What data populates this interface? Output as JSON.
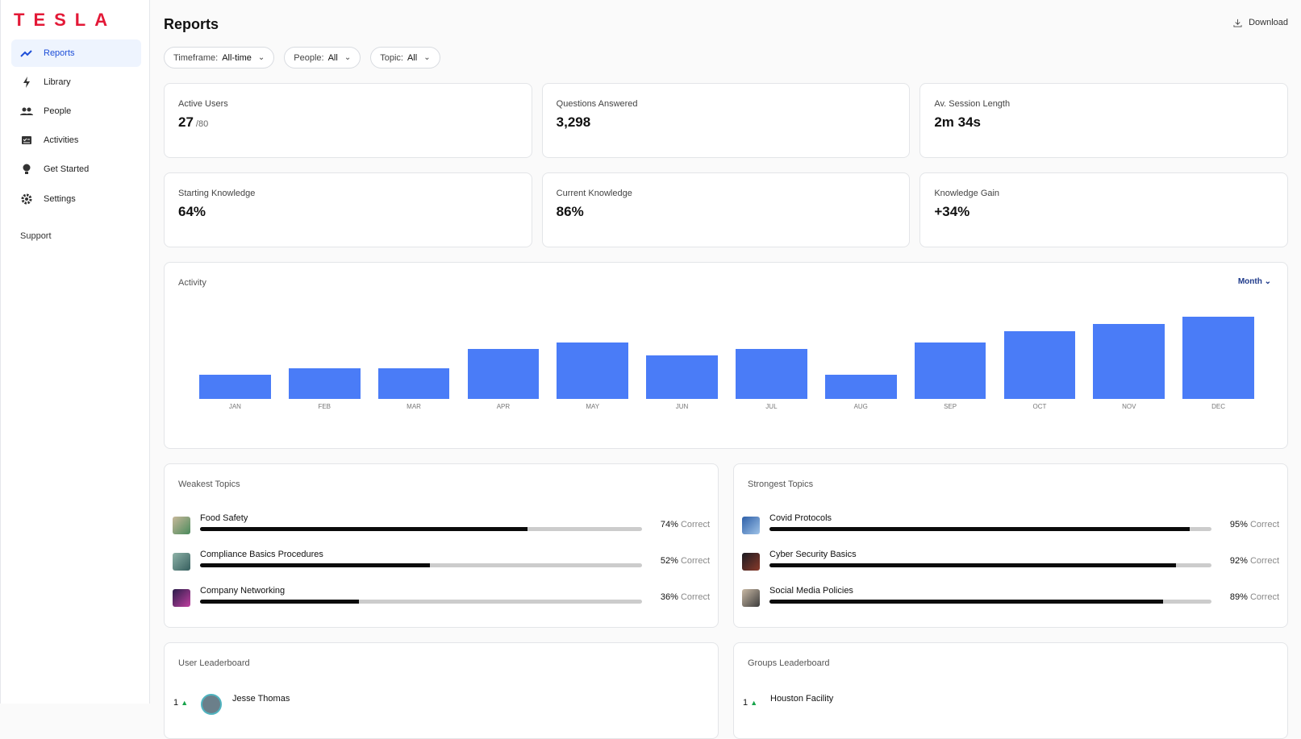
{
  "sidebar": {
    "brand": "TESLA",
    "nav": [
      "Reports",
      "Library",
      "People",
      "Activities",
      "Get Started",
      "Settings"
    ],
    "support": "Support"
  },
  "header": {
    "title": "Reports",
    "download": "Download"
  },
  "filters": [
    {
      "label": "Timeframe:",
      "value": "All-time"
    },
    {
      "label": "People:",
      "value": "All"
    },
    {
      "label": "Topic:",
      "value": "All"
    }
  ],
  "stats": [
    {
      "label": "Active Users",
      "value": "27",
      "suffix": "/80"
    },
    {
      "label": "Questions Answered",
      "value": "3,298"
    },
    {
      "label": "Av. Session Length",
      "value": "2m 34s"
    },
    {
      "label": "Starting Knowledge",
      "value": "64%"
    },
    {
      "label": "Current Knowledge",
      "value": "86%"
    },
    {
      "label": "Knowledge Gain",
      "value": "+34%"
    }
  ],
  "chart_data": {
    "type": "bar",
    "title": "Activity",
    "control": "Month",
    "categories": [
      "JAN",
      "FEB",
      "MAR",
      "APR",
      "MAY",
      "JUN",
      "JUL",
      "AUG",
      "SEP",
      "OCT",
      "NOV",
      "DEC"
    ],
    "values": [
      29,
      37,
      37,
      60,
      68,
      52,
      60,
      29,
      68,
      82,
      90,
      99
    ],
    "color": "#4a7cf7"
  },
  "correct": "Correct",
  "weakest": {
    "title": "Weakest Topics",
    "names": [
      "Food Safety",
      "Compliance Basics Procedures",
      "Company Networking"
    ],
    "values": [
      74,
      52,
      36
    ],
    "value_labels": [
      "74%",
      "52%",
      "36%"
    ]
  },
  "strongest": {
    "title": "Strongest Topics",
    "names": [
      "Covid Protocols",
      "Cyber Security Basics",
      "Social Media Policies"
    ],
    "values": [
      95,
      92,
      89
    ],
    "value_labels": [
      "95%",
      "92%",
      "89%"
    ]
  },
  "user_leaderboard": {
    "title": "User Leaderboard",
    "rank": "1",
    "name": "Jesse Thomas"
  },
  "groups_leaderboard": {
    "title": "Groups Leaderboard",
    "rank": "1",
    "name": "Houston Facility"
  }
}
